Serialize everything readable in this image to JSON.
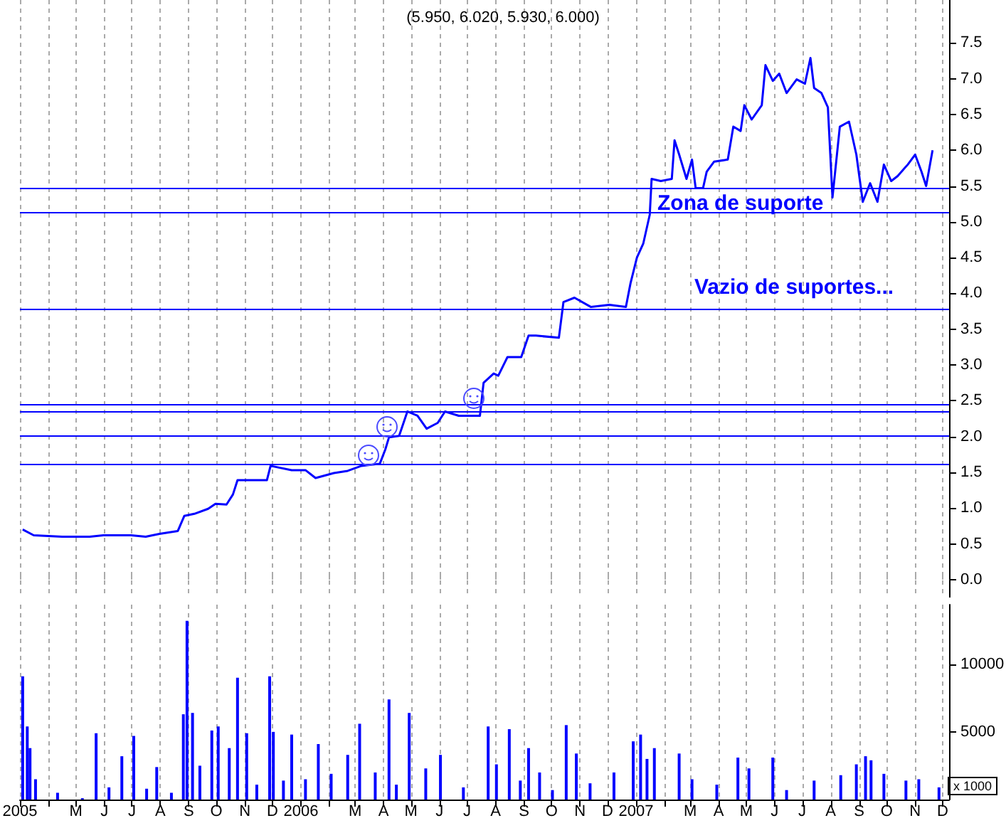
{
  "chart_data": [
    {
      "type": "line",
      "title": "(5.950, 6.020, 5.930, 6.000)",
      "x": [
        "2005-03-04",
        "2005-03-16",
        "2005-04-16",
        "2005-05-16",
        "2005-05-31",
        "2005-06-30",
        "2005-07-16",
        "2005-07-31",
        "2005-08-20",
        "2005-08-27",
        "2005-09-07",
        "2005-09-22",
        "2005-09-30",
        "2005-10-12",
        "2005-10-19",
        "2005-10-24",
        "2005-11-14",
        "2005-11-25",
        "2005-11-29",
        "2005-12-22",
        "2006-01-06",
        "2006-01-17",
        "2006-02-06",
        "2006-02-21",
        "2006-03-08",
        "2006-03-28",
        "2006-04-03",
        "2006-04-07",
        "2006-04-18",
        "2006-04-27",
        "2006-05-08",
        "2006-05-18",
        "2006-05-30",
        "2006-06-07",
        "2006-06-22",
        "2006-07-07",
        "2006-07-15",
        "2006-07-19",
        "2006-07-30",
        "2006-08-04",
        "2006-08-14",
        "2006-08-29",
        "2006-09-06",
        "2006-09-14",
        "2006-10-09",
        "2006-10-14",
        "2006-10-26",
        "2006-11-13",
        "2006-12-03",
        "2006-12-21",
        "2006-12-26",
        "2007-01-02",
        "2007-01-09",
        "2007-01-16",
        "2007-01-18",
        "2007-01-28",
        "2007-02-09",
        "2007-02-12",
        "2007-02-17",
        "2007-02-25",
        "2007-03-03",
        "2007-03-07",
        "2007-03-15",
        "2007-03-19",
        "2007-03-27",
        "2007-04-11",
        "2007-04-17",
        "2007-04-25",
        "2007-04-29",
        "2007-05-07",
        "2007-05-18",
        "2007-05-22",
        "2007-05-30",
        "2007-06-06",
        "2007-06-14",
        "2007-06-25",
        "2007-07-04",
        "2007-07-10",
        "2007-07-14",
        "2007-07-22",
        "2007-07-29",
        "2007-08-03",
        "2007-08-11",
        "2007-08-21",
        "2007-08-29",
        "2007-09-05",
        "2007-09-13",
        "2007-09-21",
        "2007-09-28",
        "2007-10-06",
        "2007-10-13",
        "2007-10-24",
        "2007-11-01",
        "2007-11-08",
        "2007-11-13",
        "2007-11-20"
      ],
      "series": [
        {
          "color": "#0000ff",
          "values": [
            0.7,
            0.62,
            0.6,
            0.6,
            0.62,
            0.62,
            0.6,
            0.64,
            0.68,
            0.89,
            0.92,
            0.99,
            1.06,
            1.05,
            1.19,
            1.39,
            1.39,
            1.39,
            1.59,
            1.53,
            1.53,
            1.42,
            1.49,
            1.52,
            1.59,
            1.62,
            1.82,
            1.99,
            2.01,
            2.35,
            2.29,
            2.11,
            2.19,
            2.35,
            2.29,
            2.29,
            2.29,
            2.75,
            2.88,
            2.85,
            3.11,
            3.11,
            3.41,
            3.41,
            3.38,
            3.88,
            3.94,
            3.81,
            3.84,
            3.81,
            4.14,
            4.5,
            4.7,
            5.1,
            5.6,
            5.57,
            5.6,
            6.14,
            5.94,
            5.6,
            5.87,
            5.47,
            5.47,
            5.7,
            5.84,
            5.87,
            6.33,
            6.27,
            6.63,
            6.43,
            6.63,
            7.19,
            6.97,
            7.07,
            6.8,
            6.99,
            6.93,
            7.29,
            6.87,
            6.8,
            6.6,
            5.34,
            6.33,
            6.4,
            5.94,
            5.28,
            5.54,
            5.28,
            5.8,
            5.57,
            5.64,
            5.8,
            5.94,
            5.7,
            5.5,
            6.0
          ]
        }
      ],
      "marker": "none",
      "xlim": [
        "2005-03-01",
        "2007-12-08"
      ],
      "xticks": [
        {
          "value": "2005-03",
          "label": null
        },
        {
          "value": "2005-04",
          "label": null
        },
        {
          "value": "2005-05",
          "label": null
        },
        {
          "value": "2005-06",
          "label": null
        },
        {
          "value": "2005-07",
          "label": null
        },
        {
          "value": "2005-08",
          "label": null
        },
        {
          "value": "2005-09",
          "label": null
        },
        {
          "value": "2005-10",
          "label": null
        },
        {
          "value": "2005-11",
          "label": null
        },
        {
          "value": "2005-12",
          "label": null
        },
        {
          "value": "2006-01",
          "label": null
        },
        {
          "value": "2006-02",
          "label": null
        },
        {
          "value": "2006-03",
          "label": null
        },
        {
          "value": "2006-04",
          "label": null
        },
        {
          "value": "2006-05",
          "label": null
        },
        {
          "value": "2006-06",
          "label": null
        },
        {
          "value": "2006-07",
          "label": null
        },
        {
          "value": "2006-08",
          "label": null
        },
        {
          "value": "2006-09",
          "label": null
        },
        {
          "value": "2006-10",
          "label": null
        },
        {
          "value": "2006-11",
          "label": null
        },
        {
          "value": "2006-12",
          "label": null
        },
        {
          "value": "2007-01",
          "label": null
        },
        {
          "value": "2007-02",
          "label": null
        },
        {
          "value": "2007-03",
          "label": null
        },
        {
          "value": "2007-04",
          "label": null
        },
        {
          "value": "2007-05",
          "label": null
        },
        {
          "value": "2007-06",
          "label": null
        },
        {
          "value": "2007-07",
          "label": null
        },
        {
          "value": "2007-08",
          "label": null
        },
        {
          "value": "2007-09",
          "label": null
        },
        {
          "value": "2007-10",
          "label": null
        },
        {
          "value": "2007-11",
          "label": null
        },
        {
          "value": "2007-12",
          "label": null
        }
      ],
      "ylim": [
        -0.25,
        8.1
      ],
      "yticks": [
        {
          "value": 0,
          "label": "0.0"
        },
        {
          "value": 0.5,
          "label": "0.5"
        },
        {
          "value": 1,
          "label": "1.0"
        },
        {
          "value": 1.5,
          "label": "1.5"
        },
        {
          "value": 2,
          "label": "2.0"
        },
        {
          "value": 2.5,
          "label": "2.5"
        },
        {
          "value": 3,
          "label": "3.0"
        },
        {
          "value": 3.5,
          "label": "3.5"
        },
        {
          "value": 4,
          "label": "4.0"
        },
        {
          "value": 4.5,
          "label": "4.5"
        },
        {
          "value": 5,
          "label": "5.0"
        },
        {
          "value": 5.5,
          "label": "5.5"
        },
        {
          "value": 6,
          "label": "6.0"
        },
        {
          "value": 6.5,
          "label": "6.5"
        },
        {
          "value": 7,
          "label": "7.0"
        },
        {
          "value": 7.5,
          "label": "7.5"
        }
      ],
      "tick_labels": "y",
      "grid": "x",
      "ref_lines": [
        {
          "axis": "y",
          "value": 5.47,
          "label": null,
          "color": "#0000ff"
        },
        {
          "axis": "y",
          "value": 5.13,
          "label": null,
          "color": "#0000ff"
        },
        {
          "axis": "y",
          "value": 3.78,
          "label": null,
          "color": "#0000ff"
        },
        {
          "axis": "y",
          "value": 2.44,
          "label": null,
          "color": "#0000ff"
        },
        {
          "axis": "y",
          "value": 2.34,
          "label": null,
          "color": "#0000ff"
        },
        {
          "axis": "y",
          "value": 2.01,
          "label": null,
          "color": "#0000ff"
        },
        {
          "axis": "y",
          "value": 1.61,
          "label": null,
          "color": "#0000ff"
        }
      ],
      "annotations": [
        "Zona de suporte",
        "Vazio de suportes..."
      ]
    },
    {
      "type": "bar",
      "x": [
        "2005-03-04",
        "2005-03-09",
        "2005-03-12",
        "2005-03-18",
        "2005-04-11",
        "2005-05-08",
        "2005-05-23",
        "2005-06-06",
        "2005-06-20",
        "2005-07-03",
        "2005-07-17",
        "2005-07-28",
        "2005-08-13",
        "2005-08-26",
        "2005-08-30",
        "2005-09-05",
        "2005-09-13",
        "2005-09-26",
        "2005-10-03",
        "2005-10-15",
        "2005-10-24",
        "2005-11-03",
        "2005-11-14",
        "2005-11-28",
        "2005-12-02",
        "2005-12-13",
        "2005-12-22",
        "2006-01-06",
        "2006-01-20",
        "2006-02-03",
        "2006-02-21",
        "2006-03-06",
        "2006-03-23",
        "2006-04-07",
        "2006-04-15",
        "2006-04-29",
        "2006-05-17",
        "2006-06-02",
        "2006-06-27",
        "2006-07-24",
        "2006-08-02",
        "2006-08-16",
        "2006-08-28",
        "2006-09-06",
        "2006-09-18",
        "2006-10-02",
        "2006-10-17",
        "2006-10-28",
        "2006-11-12",
        "2006-12-08",
        "2006-12-29",
        "2007-01-06",
        "2007-01-13",
        "2007-01-21",
        "2007-02-17",
        "2007-03-03",
        "2007-03-30",
        "2007-04-22",
        "2007-05-04",
        "2007-05-30",
        "2007-06-14",
        "2007-07-14",
        "2007-08-12",
        "2007-08-29",
        "2007-09-08",
        "2007-09-14",
        "2007-09-28",
        "2007-10-22",
        "2007-11-05",
        "2007-11-27"
      ],
      "series": [
        {
          "color": "#0000ff",
          "values": [
            9100,
            5400,
            3800,
            1500,
            500,
            100,
            4900,
            900,
            3200,
            4700,
            800,
            2400,
            500,
            6300,
            13200,
            6400,
            2500,
            5100,
            5400,
            3800,
            9000,
            4900,
            1100,
            9100,
            5000,
            1400,
            4800,
            1500,
            4100,
            1900,
            3300,
            5600,
            2000,
            7400,
            1100,
            6400,
            2300,
            3300,
            900,
            5400,
            2600,
            5200,
            1400,
            3800,
            2000,
            700,
            5500,
            3400,
            1200,
            2000,
            4300,
            4800,
            3000,
            3800,
            3400,
            1500,
            1100,
            3100,
            2300,
            3100,
            700,
            1400,
            1800,
            2600,
            3200,
            2900,
            1900,
            1400,
            1500,
            900
          ]
        }
      ],
      "xlim": [
        "2005-03-01",
        "2007-12-08"
      ],
      "xticks": [
        {
          "value": "2005-03",
          "label": "2005"
        },
        {
          "value": "2005-04",
          "label": null
        },
        {
          "value": "2005-05",
          "label": "M"
        },
        {
          "value": "2005-06",
          "label": "J"
        },
        {
          "value": "2005-07",
          "label": "J"
        },
        {
          "value": "2005-08",
          "label": "A"
        },
        {
          "value": "2005-09",
          "label": "S"
        },
        {
          "value": "2005-10",
          "label": "O"
        },
        {
          "value": "2005-11",
          "label": "N"
        },
        {
          "value": "2005-12",
          "label": "D"
        },
        {
          "value": "2006-01",
          "label": "2006"
        },
        {
          "value": "2006-02",
          "label": null
        },
        {
          "value": "2006-03",
          "label": "M"
        },
        {
          "value": "2006-04",
          "label": "A"
        },
        {
          "value": "2006-05",
          "label": "M"
        },
        {
          "value": "2006-06",
          "label": "J"
        },
        {
          "value": "2006-07",
          "label": "J"
        },
        {
          "value": "2006-08",
          "label": "A"
        },
        {
          "value": "2006-09",
          "label": "S"
        },
        {
          "value": "2006-10",
          "label": "O"
        },
        {
          "value": "2006-11",
          "label": "N"
        },
        {
          "value": "2006-12",
          "label": "D"
        },
        {
          "value": "2007-01",
          "label": "2007"
        },
        {
          "value": "2007-02",
          "label": null
        },
        {
          "value": "2007-03",
          "label": "M"
        },
        {
          "value": "2007-04",
          "label": "A"
        },
        {
          "value": "2007-05",
          "label": "M"
        },
        {
          "value": "2007-06",
          "label": "J"
        },
        {
          "value": "2007-07",
          "label": "J"
        },
        {
          "value": "2007-08",
          "label": "A"
        },
        {
          "value": "2007-09",
          "label": "S"
        },
        {
          "value": "2007-10",
          "label": "O"
        },
        {
          "value": "2007-11",
          "label": "N"
        },
        {
          "value": "2007-12",
          "label": "D"
        }
      ],
      "ylim": [
        0,
        14400
      ],
      "yticks": [
        5000,
        10000
      ],
      "ylabel": "x 1000",
      "grid": "x"
    }
  ]
}
